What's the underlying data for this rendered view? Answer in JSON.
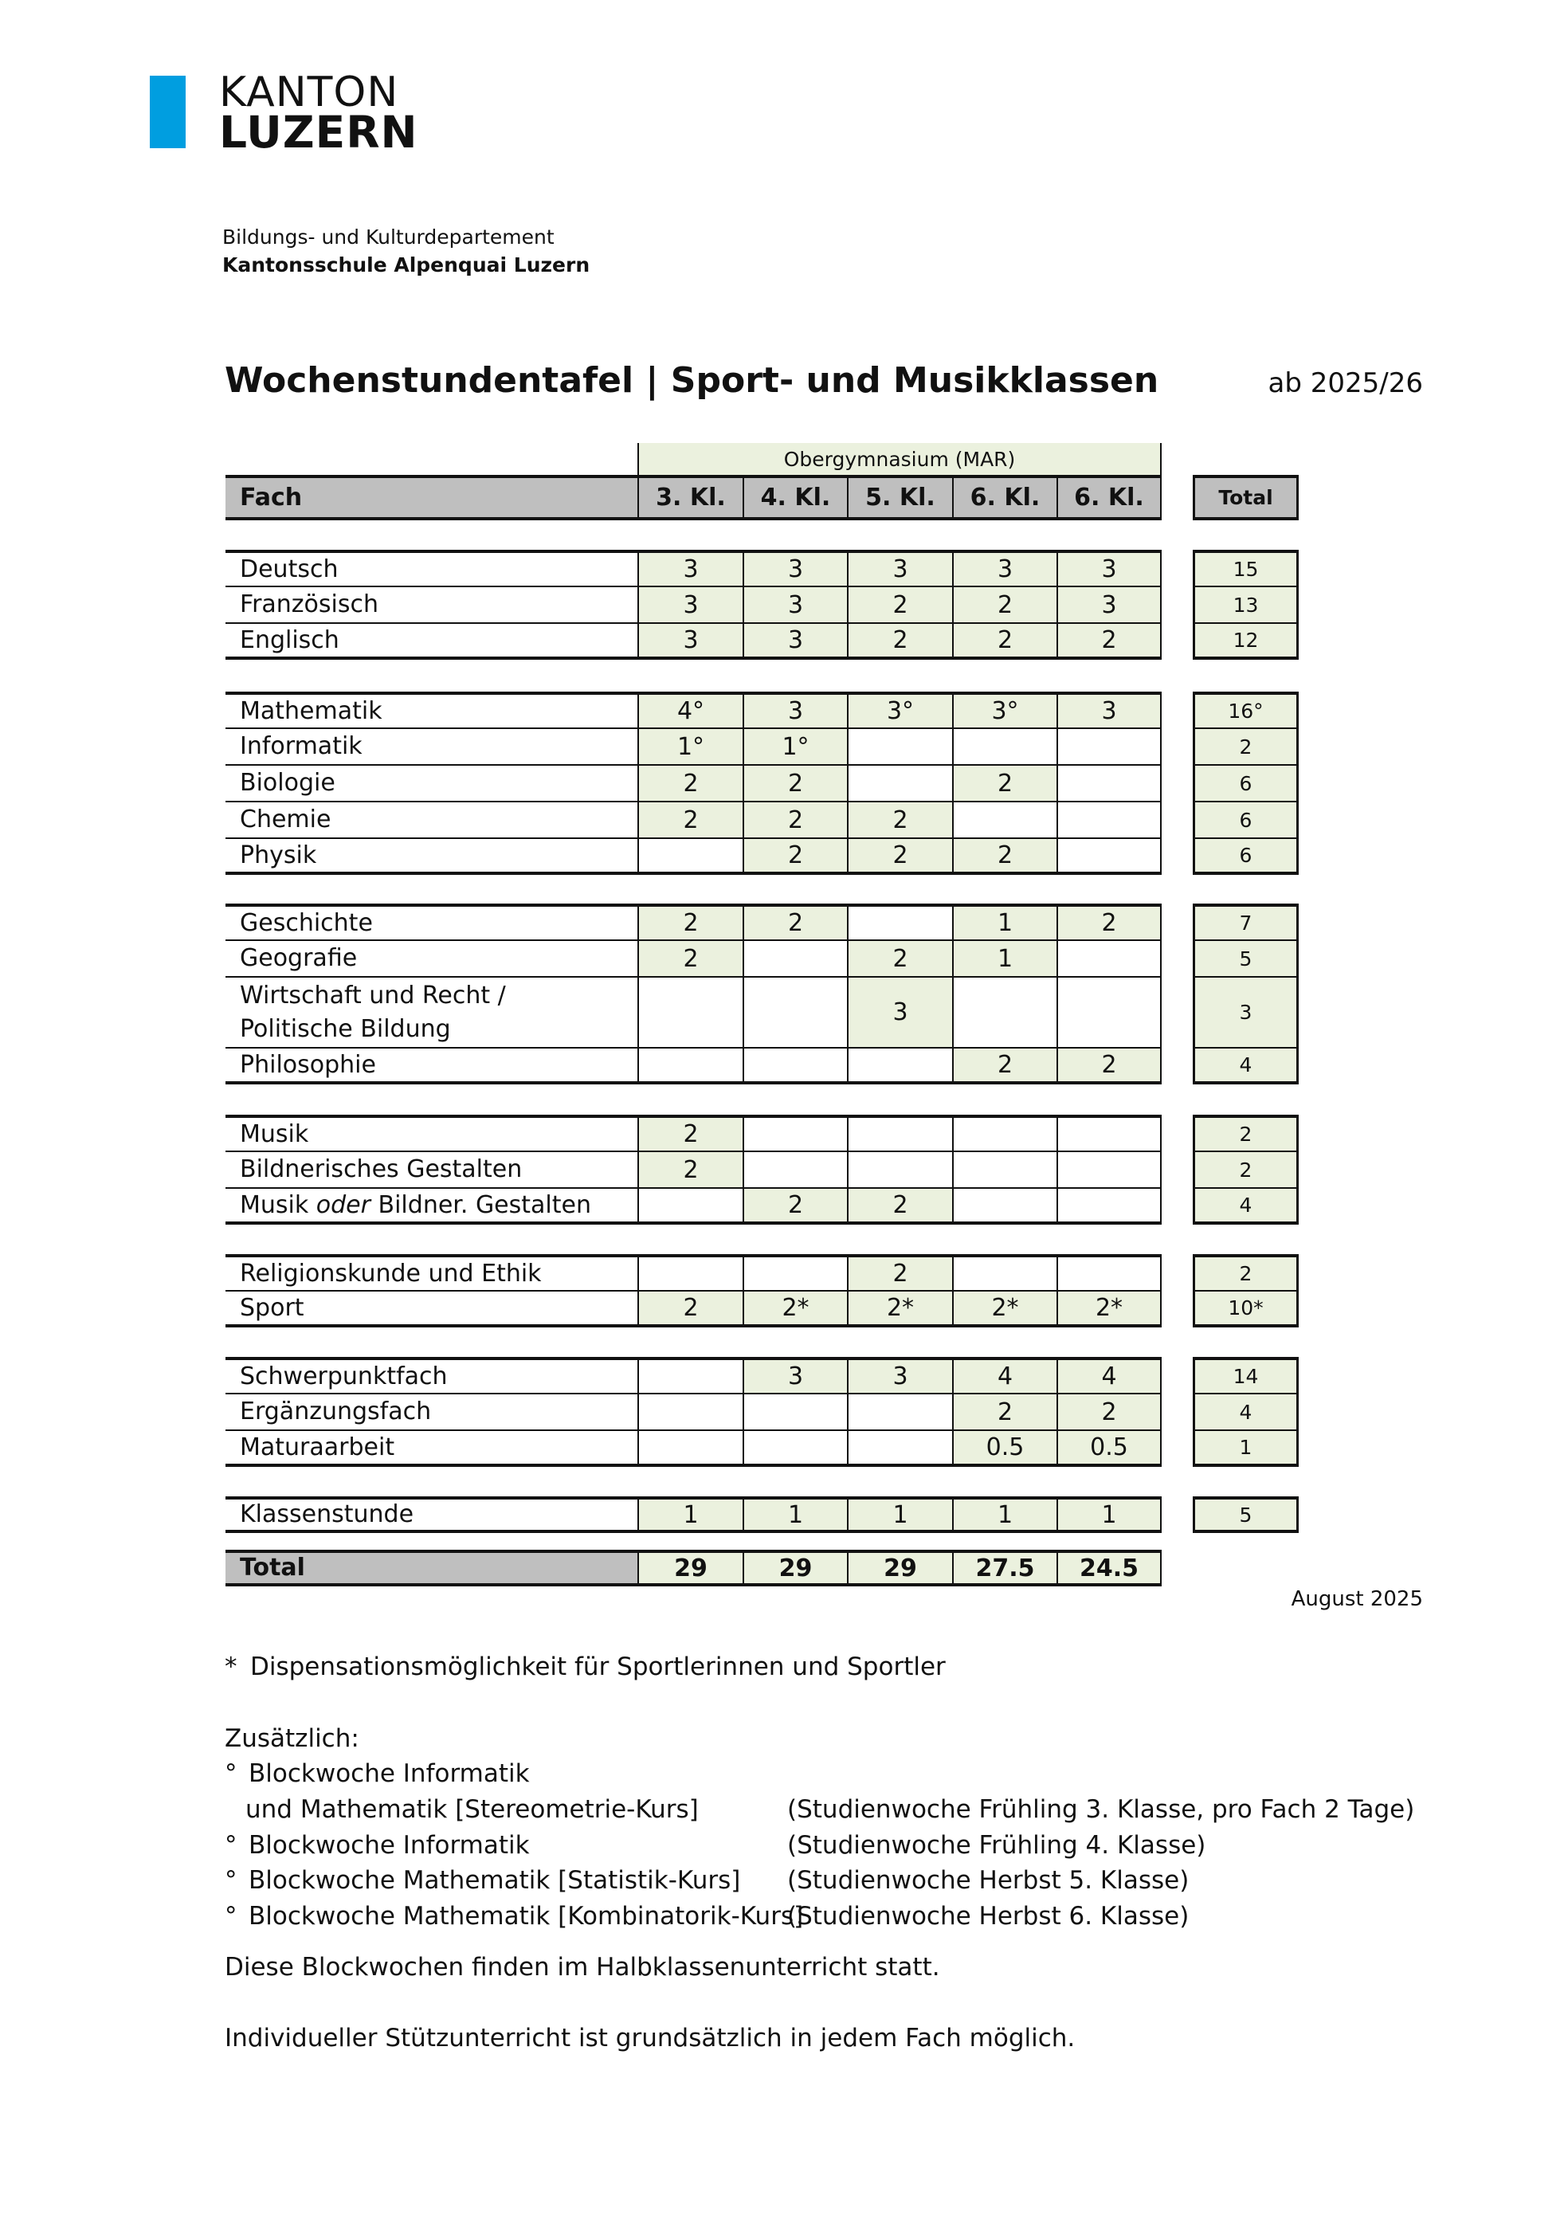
{
  "logo": {
    "line1": "KANTON",
    "line2": "LUZERN",
    "color": "#009ee0"
  },
  "department": "Bildungs- und Kulturdepartement",
  "school": "Kantonsschule Alpenquai Luzern",
  "title": "Wochenstundentafel | Sport- und Musikklassen",
  "valid_from": "ab 2025/26",
  "table": {
    "group_header": "Obergymnasium (MAR)",
    "subject_header": "Fach",
    "columns": [
      "3. Kl.",
      "4. Kl.",
      "5. Kl.",
      "6. Kl.",
      "6. Kl."
    ],
    "total_header": "Total",
    "colors": {
      "filled": "#ebf1de",
      "header": "#bfbfbf"
    },
    "groups": [
      [
        {
          "subject": [
            "Deutsch"
          ],
          "values": [
            "3",
            "3",
            "3",
            "3",
            "3"
          ],
          "total": "15"
        },
        {
          "subject": [
            "Französisch"
          ],
          "values": [
            "3",
            "3",
            "2",
            "2",
            "3"
          ],
          "total": "13"
        },
        {
          "subject": [
            "Englisch"
          ],
          "values": [
            "3",
            "3",
            "2",
            "2",
            "2"
          ],
          "total": "12"
        }
      ],
      [
        {
          "subject": [
            "Mathematik"
          ],
          "values": [
            "4°",
            "3",
            "3°",
            "3°",
            "3"
          ],
          "total": "16°"
        },
        {
          "subject": [
            "Informatik"
          ],
          "values": [
            "1°",
            "1°",
            "",
            "",
            ""
          ],
          "total": "2"
        },
        {
          "subject": [
            "Biologie"
          ],
          "values": [
            "2",
            "2",
            "",
            "2",
            ""
          ],
          "total": "6"
        },
        {
          "subject": [
            "Chemie"
          ],
          "values": [
            "2",
            "2",
            "2",
            "",
            ""
          ],
          "total": "6"
        },
        {
          "subject": [
            "Physik"
          ],
          "values": [
            "",
            "2",
            "2",
            "2",
            ""
          ],
          "total": "6"
        }
      ],
      [
        {
          "subject": [
            "Geschichte"
          ],
          "values": [
            "2",
            "2",
            "",
            "1",
            "2"
          ],
          "total": "7"
        },
        {
          "subject": [
            "Geografie"
          ],
          "values": [
            "2",
            "",
            "2",
            "1",
            ""
          ],
          "total": "5"
        },
        {
          "subject": [
            "Wirtschaft und Recht /",
            "Politische Bildung"
          ],
          "values": [
            "",
            "",
            "3",
            "",
            ""
          ],
          "total": "3",
          "double": true
        },
        {
          "subject": [
            "Philosophie"
          ],
          "values": [
            "",
            "",
            "",
            "2",
            "2"
          ],
          "total": "4"
        }
      ],
      [
        {
          "subject": [
            "Musik"
          ],
          "values": [
            "2",
            "",
            "",
            "",
            ""
          ],
          "total": "2"
        },
        {
          "subject": [
            "Bildnerisches Gestalten"
          ],
          "values": [
            "2",
            "",
            "",
            "",
            ""
          ],
          "total": "2"
        },
        {
          "subject": [
            "Musik ",
            "oder",
            " Bildner. Gestalten"
          ],
          "italic": 1,
          "values": [
            "",
            "2",
            "2",
            "",
            ""
          ],
          "total": "4"
        }
      ],
      [
        {
          "subject": [
            "Religionskunde und Ethik"
          ],
          "values": [
            "",
            "",
            "2",
            "",
            ""
          ],
          "total": "2"
        },
        {
          "subject": [
            "Sport"
          ],
          "values": [
            "2",
            "2*",
            "2*",
            "2*",
            "2*"
          ],
          "total": "10*"
        }
      ],
      [
        {
          "subject": [
            "Schwerpunktfach"
          ],
          "values": [
            "",
            "3",
            "3",
            "4",
            "4"
          ],
          "total": "14"
        },
        {
          "subject": [
            "Ergänzungsfach"
          ],
          "values": [
            "",
            "",
            "",
            "2",
            "2"
          ],
          "total": "4"
        },
        {
          "subject": [
            "Maturaarbeit"
          ],
          "values": [
            "",
            "",
            "",
            "0.5",
            "0.5"
          ],
          "total": "1"
        }
      ],
      [
        {
          "subject": [
            "Klassenstunde"
          ],
          "values": [
            "1",
            "1",
            "1",
            "1",
            "1"
          ],
          "total": "5"
        }
      ]
    ],
    "total_row": {
      "label": "Total",
      "values": [
        "29",
        "29",
        "29",
        "27.5",
        "24.5"
      ]
    }
  },
  "date": "August 2025",
  "footnote_marker": "*",
  "footnote": "Dispensationsmöglichkeit für Sportlerinnen und Sportler",
  "additional_title": "Zusätzlich:",
  "additional": [
    {
      "bullet": "°",
      "text": "Blockwoche Informatik",
      "note": ""
    },
    {
      "bullet": "",
      "text": "und Mathematik [Stereometrie-Kurs]",
      "note": "(Studienwoche Frühling 3. Klasse, pro Fach 2 Tage)"
    },
    {
      "bullet": "°",
      "text": "Blockwoche Informatik",
      "note": "(Studienwoche Frühling 4. Klasse)"
    },
    {
      "bullet": "°",
      "text": "Blockwoche Mathematik [Statistik-Kurs]",
      "note": "(Studienwoche Herbst 5. Klasse)"
    },
    {
      "bullet": "°",
      "text": "Blockwoche Mathematik [Kombinatorik-Kurs]",
      "note": "(Studienwoche Herbst 6. Klasse)"
    }
  ],
  "note1": "Diese Blockwochen finden im Halbklassenunterricht statt.",
  "note2": "Individueller Stützunterricht ist grundsätzlich in jedem Fach möglich."
}
